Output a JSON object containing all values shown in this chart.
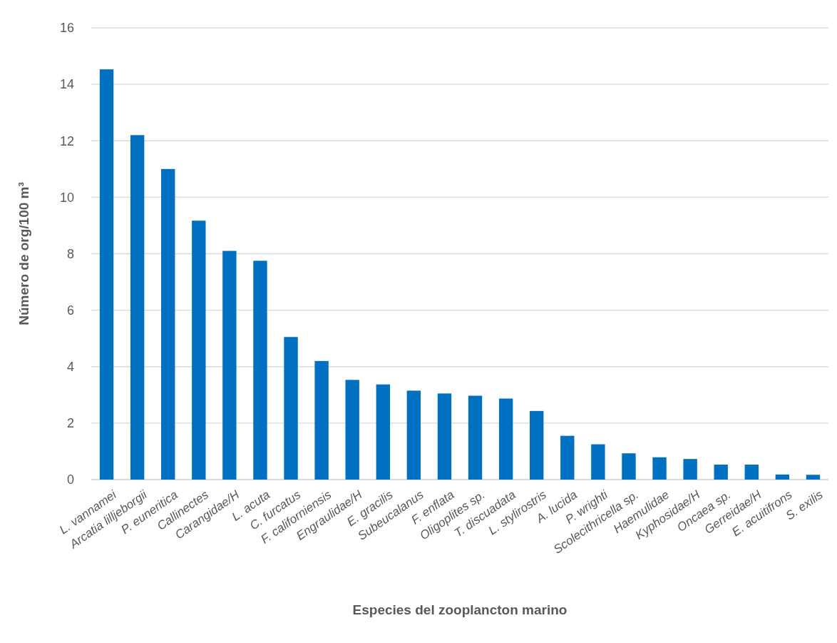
{
  "chart_data": {
    "type": "bar",
    "xlabel": "Especies del zooplancton marino",
    "ylabel": "Número de org/100 m³",
    "categories": [
      "L. vannamei",
      "Arcatia lilljeborgii",
      "P. euneritica",
      "Callinectes",
      "Carangidae/H",
      "L. acuta",
      "C.  furcatus",
      "F. californiensis",
      "Engraulidae/H",
      "E. gracilis",
      "Subeucalanus",
      "F. enflata",
      "Oligoplites sp.",
      "T. discuadata",
      "L. stylirostris",
      "A. lucida",
      "P. wrighti",
      "Scolecithricella sp.",
      "Haemulidae",
      "Kyphosidae/H",
      "Oncaea sp.",
      "Gerreidae/H",
      "E. acuitifrons",
      "S. exilis"
    ],
    "values": [
      14.53,
      12.2,
      11.0,
      9.17,
      8.1,
      7.75,
      5.05,
      4.2,
      3.53,
      3.37,
      3.15,
      3.05,
      2.97,
      2.87,
      2.43,
      1.55,
      1.25,
      0.93,
      0.79,
      0.73,
      0.53,
      0.53,
      0.18,
      0.17
    ],
    "color": "#0070c0",
    "ylim": [
      0,
      16
    ],
    "yticks": [
      0,
      2,
      4,
      6,
      8,
      10,
      12,
      14,
      16
    ],
    "grid": "y"
  }
}
